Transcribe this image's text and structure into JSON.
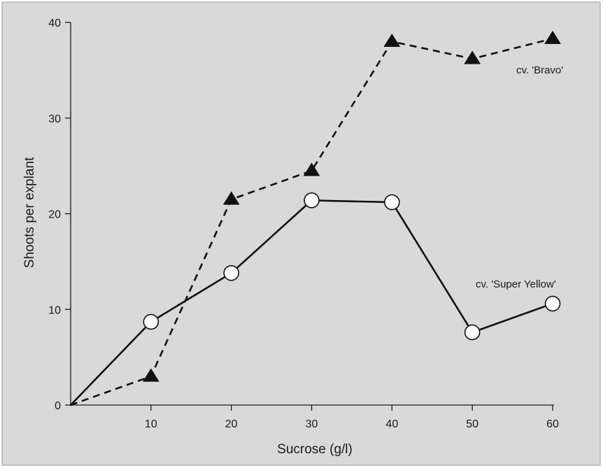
{
  "chart_data": {
    "type": "line",
    "title": "",
    "xlabel": "Sucrose  (g/l)",
    "ylabel": "Shoots  per  explant",
    "xlim": [
      0,
      60
    ],
    "ylim": [
      0,
      40
    ],
    "x_ticks": [
      10,
      20,
      30,
      40,
      50,
      60
    ],
    "x_tick_labels": [
      "10",
      "20",
      "30",
      "40",
      "50",
      "60"
    ],
    "y_ticks": [
      0,
      10,
      20,
      30,
      40
    ],
    "y_tick_labels": [
      "0",
      "10",
      "20",
      "30",
      "40"
    ],
    "grid": false,
    "legend": "none",
    "background_color": "#d9d9d9",
    "series": [
      {
        "name": "cv.  'Bravo'",
        "marker": "filled-triangle",
        "line_style": "dashed",
        "color": "#111111",
        "x": [
          0,
          10,
          20,
          30,
          40,
          50,
          60
        ],
        "values": [
          0,
          3,
          21.5,
          24.5,
          38,
          36.2,
          38.3
        ]
      },
      {
        "name": "cv.  'Super  Yellow'",
        "marker": "open-circle",
        "line_style": "solid",
        "color": "#111111",
        "x": [
          0,
          10,
          20,
          30,
          40,
          50,
          60
        ],
        "values": [
          0,
          8.7,
          13.8,
          21.4,
          21.2,
          7.6,
          10.6
        ]
      }
    ]
  }
}
